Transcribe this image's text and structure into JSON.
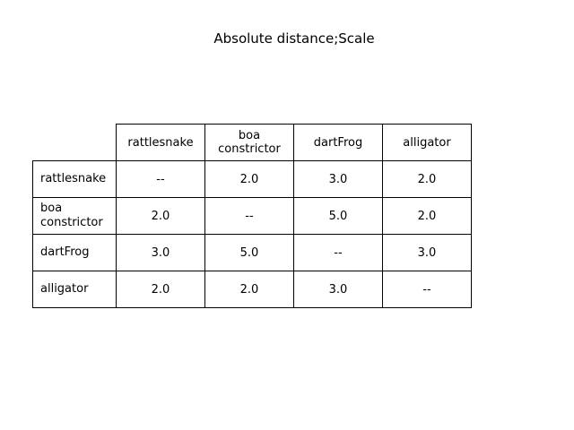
{
  "chart_data": {
    "type": "table",
    "title": "Absolute distance;Scale",
    "columns": [
      "rattlesnake",
      "boa\nconstrictor",
      "dartFrog",
      "alligator"
    ],
    "rows": [
      {
        "label": "rattlesnake",
        "values": [
          "--",
          "2.0",
          "3.0",
          "2.0"
        ]
      },
      {
        "label": "boa\nconstrictor",
        "values": [
          "2.0",
          "--",
          "5.0",
          "2.0"
        ]
      },
      {
        "label": "dartFrog",
        "values": [
          "3.0",
          "5.0",
          "--",
          "3.0"
        ]
      },
      {
        "label": "alligator",
        "values": [
          "2.0",
          "2.0",
          "3.0",
          "--"
        ]
      }
    ]
  }
}
